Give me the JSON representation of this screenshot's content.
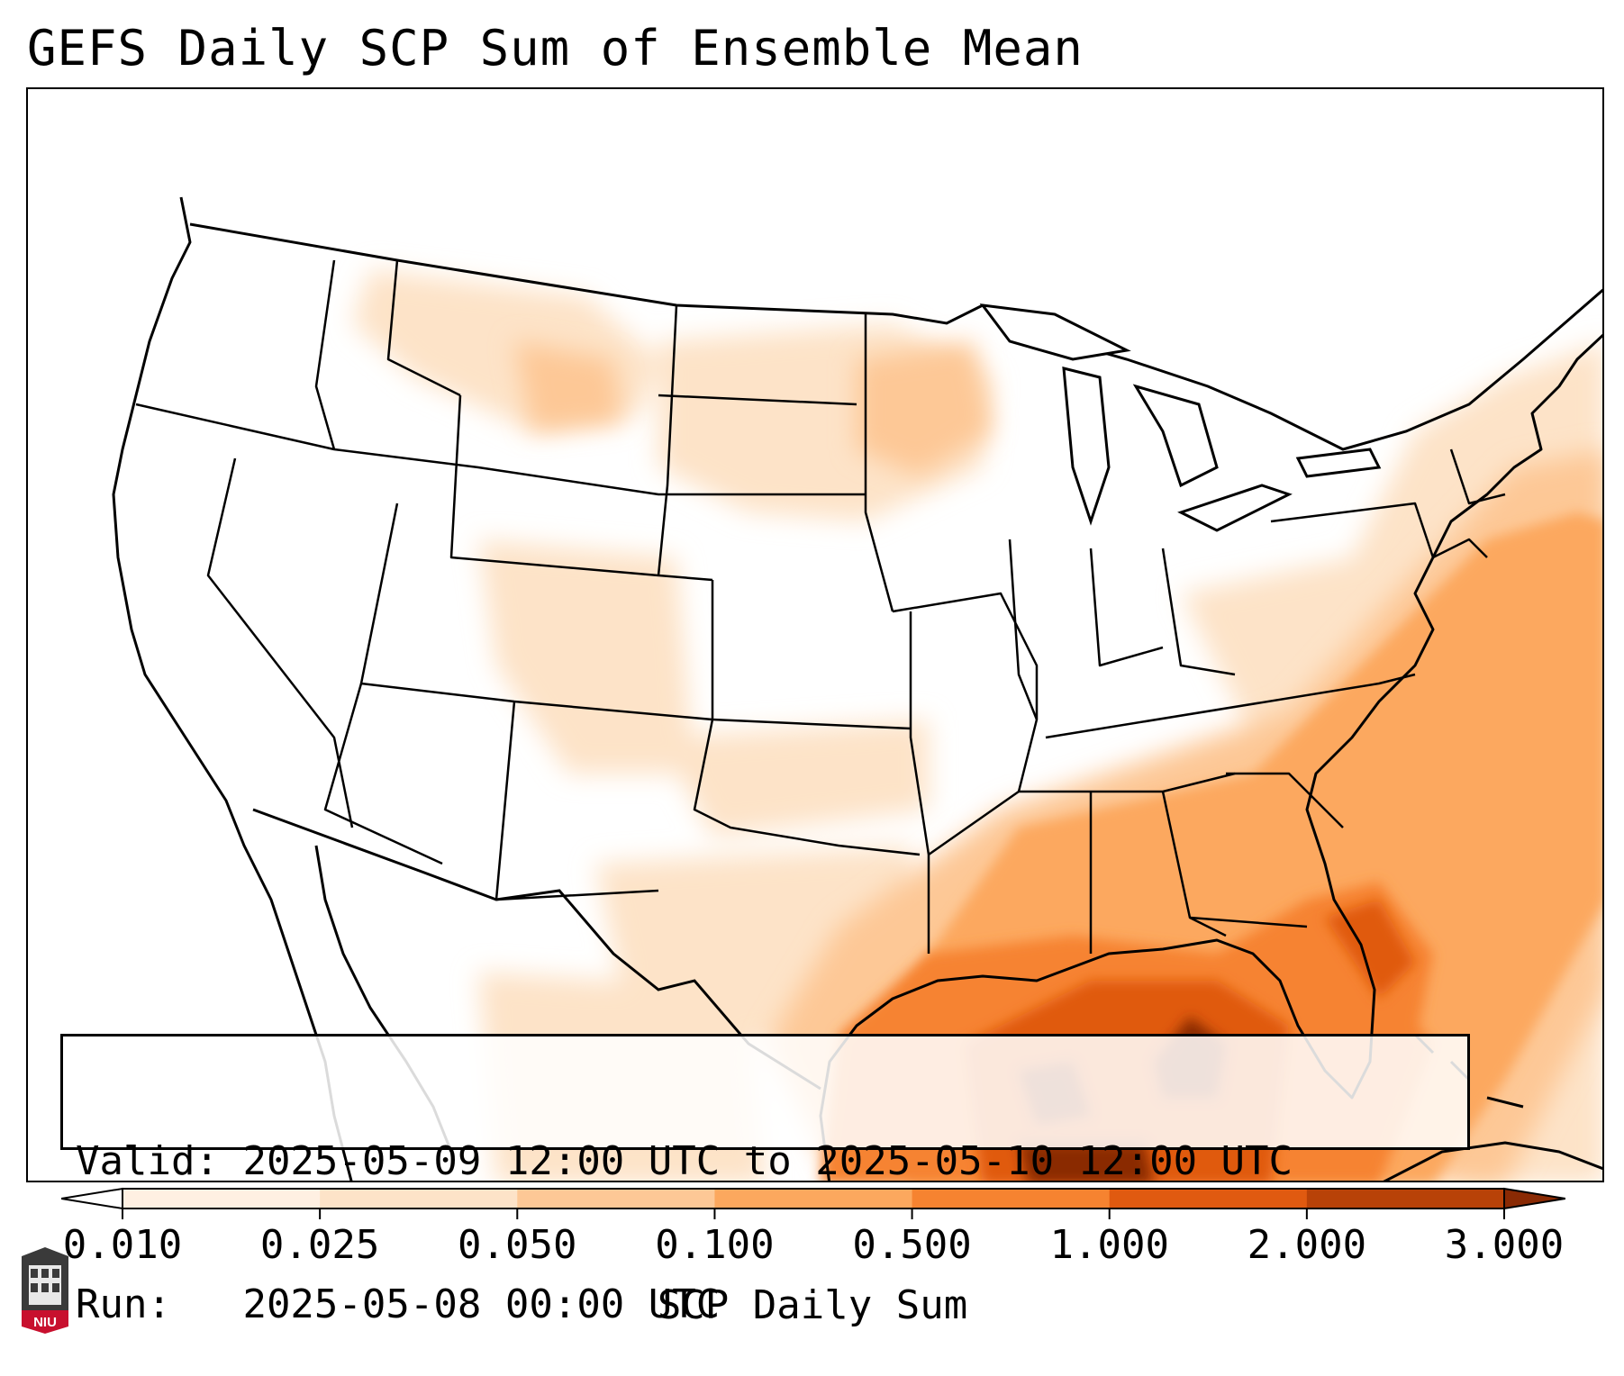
{
  "title": "GEFS Daily SCP Sum of Ensemble Mean",
  "info": {
    "valid_label": "Valid:",
    "valid_value": "2025-05-09 12:00 UTC to 2025-05-10 12:00 UTC",
    "run_label": "Run:",
    "run_value": "2025-05-08 00:00 UTC"
  },
  "colorbar": {
    "label": "SCP Daily Sum",
    "ticks": [
      "0.010",
      "0.025",
      "0.050",
      "0.100",
      "0.500",
      "1.000",
      "2.000",
      "3.000"
    ],
    "colors": [
      "#fff0e2",
      "#fde3c8",
      "#fdc896",
      "#fca85e",
      "#f68330",
      "#e05a10",
      "#b84208",
      "#8a2a04"
    ],
    "extend": "both"
  },
  "logo": {
    "text": "NIU"
  },
  "map": {
    "region": "CONUS",
    "field_colors": {
      "lightest": "#fff0e2",
      "light": "#fde3c8",
      "mid": "#fca85e",
      "strong": "#f68330",
      "deep": "#e05a10",
      "darkest": "#8a2a04"
    }
  }
}
